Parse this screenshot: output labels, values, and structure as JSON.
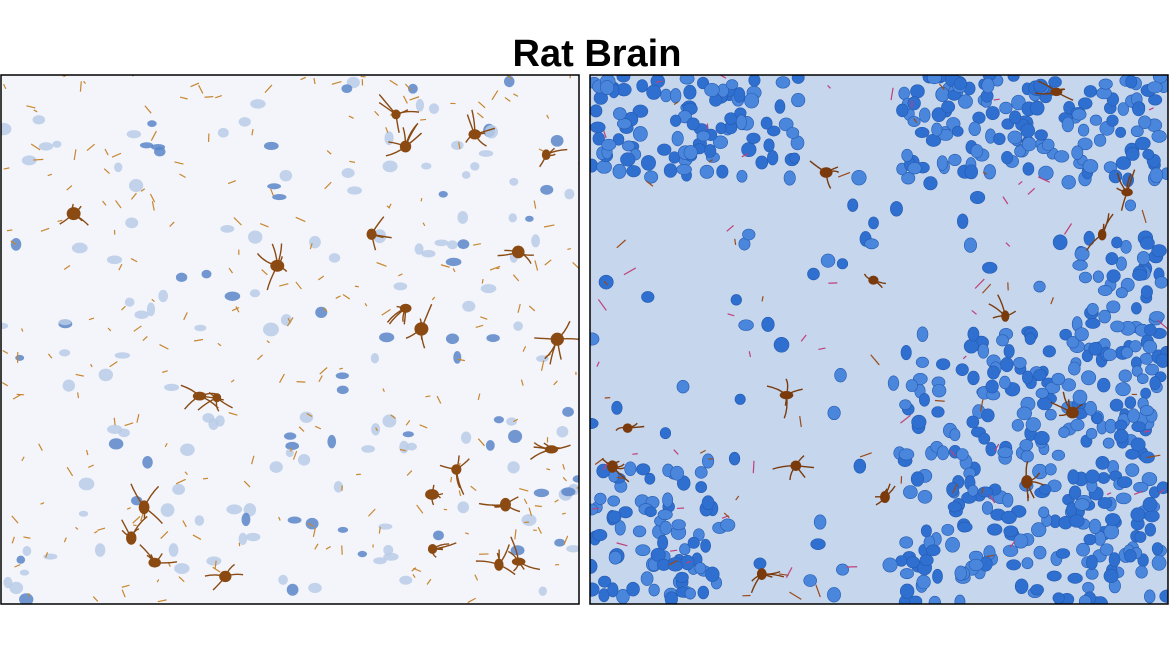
{
  "header": {
    "title": "Rat Brain"
  }
}
